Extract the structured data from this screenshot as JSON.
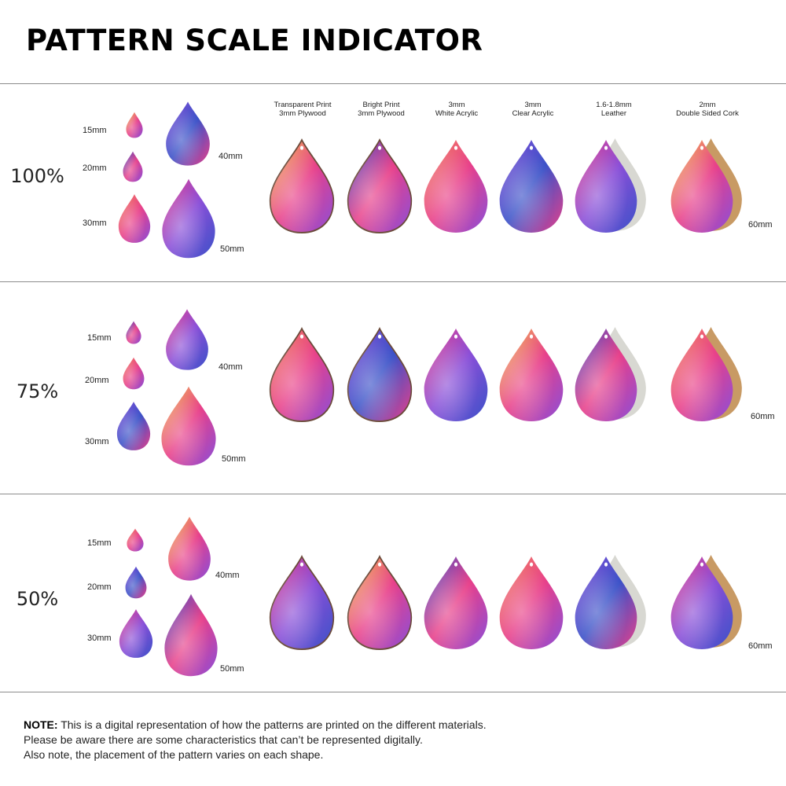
{
  "title": "PATTERN SCALE INDICATOR",
  "columns": [
    {
      "line1": "Transparent Print",
      "line2": "3mm Plywood"
    },
    {
      "line1": "Bright Print",
      "line2": "3mm Plywood"
    },
    {
      "line1": "3mm",
      "line2": "White Acrylic"
    },
    {
      "line1": "3mm",
      "line2": "Clear Acrylic"
    },
    {
      "line1": "1.6-1.8mm",
      "line2": "Leather"
    },
    {
      "line1": "2mm",
      "line2": "Double Sided Cork"
    }
  ],
  "rows": [
    {
      "scale": "100%",
      "size_15": "15mm",
      "size_20": "20mm",
      "size_30": "30mm",
      "size_40": "40mm",
      "size_50": "50mm",
      "size_60": "60mm"
    },
    {
      "scale": "75%",
      "size_15": "15mm",
      "size_20": "20mm",
      "size_30": "30mm",
      "size_40": "40mm",
      "size_50": "50mm",
      "size_60": "60mm"
    },
    {
      "scale": "50%",
      "size_15": "15mm",
      "size_20": "20mm",
      "size_30": "30mm",
      "size_40": "40mm",
      "size_50": "50mm",
      "size_60": "60mm"
    }
  ],
  "note": {
    "label": "NOTE:",
    "line1": " This is a digital representation of how the patterns are printed on the different materials.",
    "line2": "Please be aware there are some characteristics that can’t be represented digitally.",
    "line3": "Also note, the placement of the pattern varies on each shape."
  },
  "colors": {
    "pink": "#e8408a",
    "purple": "#8a4fd8",
    "blue": "#3b52c8",
    "yellow": "#f2c94c",
    "orange": "#f28a5a",
    "leather_back": "#d8d8d2",
    "cork_back": "#c89a64",
    "rule": "#8c8c8c"
  }
}
